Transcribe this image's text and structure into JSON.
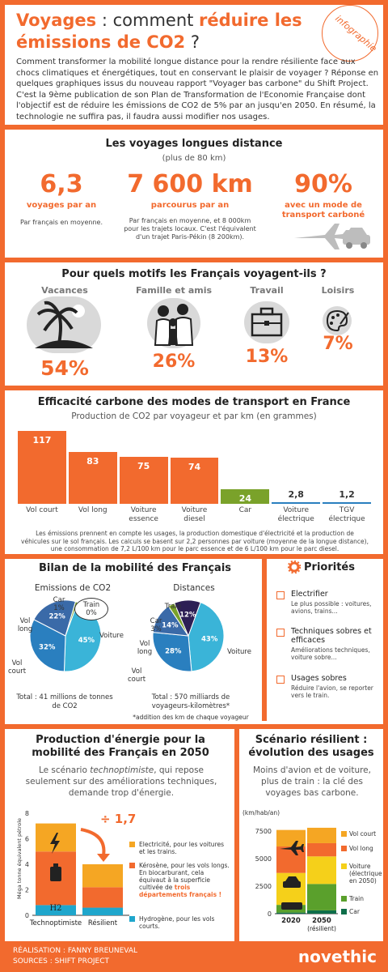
{
  "header": {
    "title_a": "Voyages",
    "title_b": " : comment ",
    "title_c": "réduire les",
    "title_d": "émissions de CO2",
    "title_e": " ?",
    "stamp": "infographie",
    "intro": "Comment transformer la mobilité longue distance pour la rendre résiliente face aux chocs climatiques et énergétiques, tout en conservant le plaisir de voyager ? Réponse en quelques graphiques issus du nouveau rapport \"Voyager bas carbone\" du Shift Project. C'est la 9ème publication de son Plan de Transformation de l'Economie Française dont l'objectif est de réduire les émissions de CO2 de 5% par an jusqu'en 2050. En résumé, la technologie ne suffira pas, il faudra aussi modifier nos usages."
  },
  "long_trips": {
    "title": "Les voyages longues distance",
    "subtitle": "(plus de 80 km)",
    "stats": [
      {
        "value": "6,3",
        "label": "voyages par an",
        "note": "Par français en moyenne."
      },
      {
        "value": "7 600 km",
        "label": "parcourus par an",
        "note": "Par français en moyenne, et 8 000km pour les trajets locaux. C'est l'équivalent d'un trajet Paris-Pékin (8 200km)."
      },
      {
        "value": "90%",
        "label": "avec un mode de transport carboné",
        "note": ""
      }
    ],
    "icons": [
      "plane-icon",
      "car-icon"
    ]
  },
  "motives": {
    "title": "Pour quels motifs les Français voyagent-ils ?",
    "items": [
      {
        "label": "Vacances",
        "pct": "54%",
        "value": 54,
        "icon": "palm-tree-icon"
      },
      {
        "label": "Famille et amis",
        "pct": "26%",
        "value": 26,
        "icon": "family-icon"
      },
      {
        "label": "Travail",
        "pct": "13%",
        "value": 13,
        "icon": "briefcase-icon"
      },
      {
        "label": "Loisirs",
        "pct": "7%",
        "value": 7,
        "icon": "palette-icon"
      }
    ]
  },
  "efficiency": {
    "title": "Efficacité carbone des modes de transport en France",
    "subtitle": "Production de CO2 par voyageur et par km (en grammes)",
    "footnote": "Les émissions prennent en compte les usages, la production domestique d'électricité et la production de véhicules sur le sol français. Les calculs se basent sur 2,2 personnes par voiture (moyenne de la longue distance), une consommation de 7,2 L/100 km pour le parc essence et de 6 L/100 km pour le parc diesel."
  },
  "chart_data": [
    {
      "type": "bar",
      "categories": [
        "Vol court",
        "Vol long",
        "Voiture essence",
        "Voiture diesel",
        "Car",
        "Voiture électrique",
        "TGV électrique"
      ],
      "values": [
        117,
        83,
        75,
        74,
        24,
        2.8,
        1.2
      ],
      "value_labels": [
        "117",
        "83",
        "75",
        "74",
        "24",
        "2,8",
        "1,2"
      ],
      "colors": [
        "#f26a2e",
        "#f26a2e",
        "#f26a2e",
        "#f26a2e",
        "#7aa22a",
        "#2a7fbf",
        "#2a7fbf"
      ],
      "title": "Efficacité carbone des modes de transport en France",
      "ylabel": "",
      "ylim": [
        0,
        117
      ]
    },
    {
      "type": "pie",
      "title": "Emissions de CO2",
      "labels": [
        "Voiture",
        "Vol court",
        "Vol long",
        "Car",
        "Train"
      ],
      "values": [
        45,
        32,
        22,
        1,
        0
      ],
      "value_labels": [
        "45%",
        "32%",
        "22%",
        "1%",
        "0%"
      ],
      "colors": [
        "#3ab4d8",
        "#2a7fbf",
        "#3a6aa8",
        "#7aa22a",
        "#cccccc"
      ],
      "total": "Total : 41 millions de tonnes de CO2"
    },
    {
      "type": "pie",
      "title": "Distances",
      "labels": [
        "Voiture",
        "Vol court",
        "Vol long",
        "Car",
        "Train"
      ],
      "values": [
        43,
        28,
        14,
        3,
        12
      ],
      "value_labels": [
        "43%",
        "28%",
        "14%",
        "3%",
        "12%"
      ],
      "colors": [
        "#3ab4d8",
        "#2a7fbf",
        "#3a6aa8",
        "#7aa22a",
        "#2d1f55"
      ],
      "total": "Total : 570 milliards de voyageurs-kilomètres*",
      "footnote": "*addition des km de chaque voyageur"
    },
    {
      "type": "bar",
      "title": "Production d'énergie pour la mobilité des Français en 2050",
      "categories": [
        "Technoptimiste",
        "Résilient"
      ],
      "series": [
        {
          "name": "Hydrogène, pour les vols courts.",
          "values": [
            0.8,
            0.6
          ],
          "color": "#1fa6cc"
        },
        {
          "name": "Kérosène, pour les vols longs.",
          "values": [
            4.2,
            1.6
          ],
          "color": "#f26a2e"
        },
        {
          "name": "Electricité, pour les voitures et les trains.",
          "values": [
            2.2,
            1.8
          ],
          "color": "#f5a623"
        }
      ],
      "ylabel": "Méga tonne équivalent pétrole",
      "ylim": [
        0,
        8
      ],
      "yticks": [
        0,
        2,
        4,
        6,
        8
      ],
      "annotation": "÷ 1,7"
    },
    {
      "type": "bar",
      "title": "Scénario résilient : évolution des usages",
      "categories": [
        "2020",
        "2050 (résilient)"
      ],
      "series": [
        {
          "name": "Car",
          "values": [
            100,
            300
          ],
          "color": "#0e6e4a"
        },
        {
          "name": "Train",
          "values": [
            700,
            2400
          ],
          "color": "#5aa02c"
        },
        {
          "name": "Voiture (électrique en 2050)",
          "values": [
            2900,
            2500
          ],
          "color": "#f5d01a"
        },
        {
          "name": "Vol long",
          "values": [
            2400,
            1200
          ],
          "color": "#f26a2e"
        },
        {
          "name": "Vol court",
          "values": [
            1500,
            1400
          ],
          "color": "#f5a623"
        }
      ],
      "ylabel": "(km/hab/an)",
      "ylim": [
        0,
        7500
      ],
      "yticks": [
        0,
        2500,
        5000,
        7500
      ]
    }
  ],
  "mobility": {
    "title": "Bilan de la mobilité des Français",
    "pie1_ext": {
      "car": "Car\n1%",
      "train": "Train\n0%",
      "vol_long": "Vol\nlong",
      "vol_court": "Vol\ncourt",
      "voiture": "Voiture"
    },
    "pie2_ext": {
      "train": "Train",
      "car": "Car\n3%",
      "vol_long": "Vol\nlong",
      "vol_court": "Vol\ncourt",
      "voiture": "Voiture"
    }
  },
  "priorities": {
    "title": "Priorités",
    "items": [
      {
        "heading": "Electrifier",
        "desc": "Le plus possible : voitures, avions, trains..."
      },
      {
        "heading": "Techniques sobres et efficaces",
        "desc": "Améliorations techniques, voiture sobre..."
      },
      {
        "heading": "Usages sobres",
        "desc": "Réduire l'avion, se reporter vers le train."
      }
    ]
  },
  "energy": {
    "title": "Production d'énergie pour la mobilité des Français en 2050",
    "text_a": "Le scénario ",
    "text_b": "technoptimiste",
    "text_c": ", qui repose seulement sur des améliorations techniques, demande trop d'énergie.",
    "legend_kero_a": "Kérosène, pour les vols longs. En biocarburant, cela équivaut à la superficie cultivée de ",
    "legend_kero_b": "trois départements français !",
    "h2": "H2"
  },
  "scenario": {
    "title": "Scénario résilient : évolution des usages",
    "text": "Moins d'avion et de voiture, plus de train : la clé des voyages bas carbone."
  },
  "footer": {
    "line1": "RÉALISATION : FANNY BREUNEVAL",
    "line2": "SOURCES : SHIFT PROJECT",
    "logo": "novethic"
  }
}
